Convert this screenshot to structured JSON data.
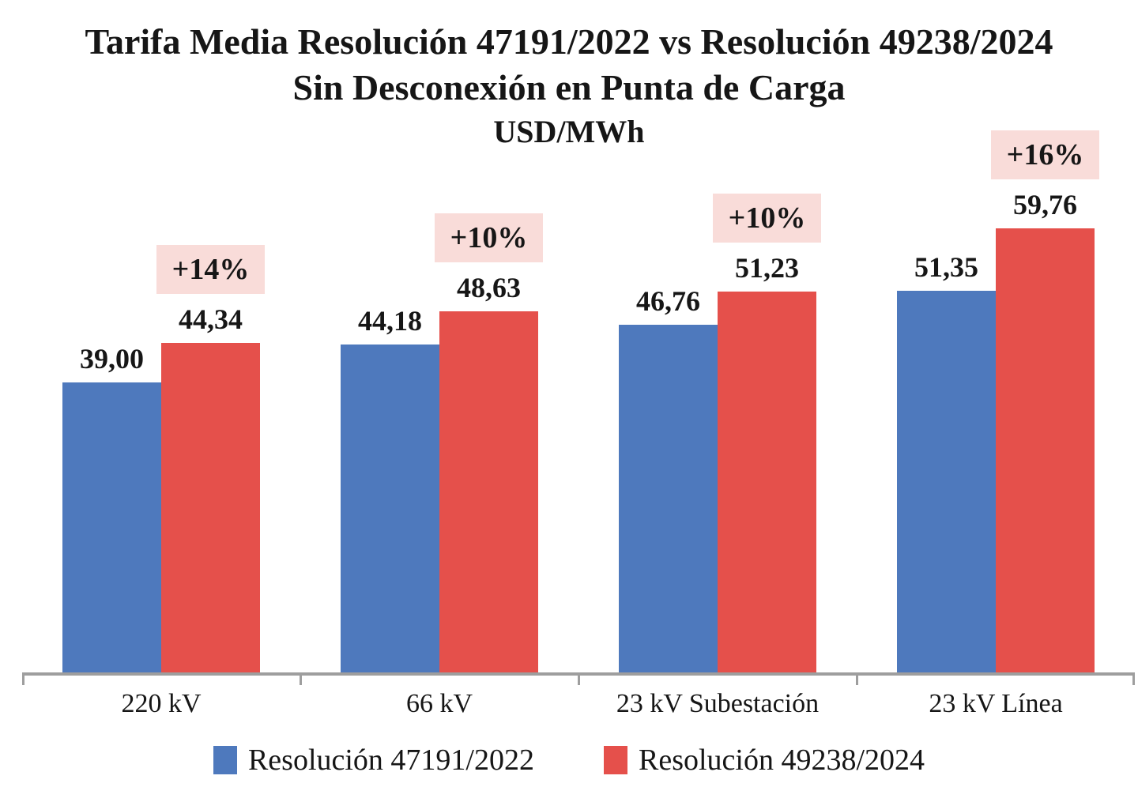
{
  "header": {
    "cropped_text_remnant": "Tarifa Media Resolución 47191/2022 vs Resolución 49238/2024",
    "title_line1": "Tarifa Media Resolución 47191/2022 vs Resolución 49238/2024",
    "title_line2": "Sin Desconexión en Punta de Carga",
    "subtitle": "USD/MWh"
  },
  "chart_data": {
    "type": "bar",
    "title": "Tarifa Media Resolución 47191/2022 vs Resolución 49238/2024",
    "subtitle": "Sin Desconexión en Punta de Carga",
    "unit": "USD/MWh",
    "categories": [
      "220 kV",
      "66 kV",
      "23 kV Subestación",
      "23 kV Línea"
    ],
    "series": [
      {
        "name": "Resolución 47191/2022",
        "color": "#4e79bd",
        "values": [
          39.0,
          44.18,
          46.76,
          51.35
        ],
        "value_labels": [
          "39,00",
          "44,18",
          "46,76",
          "51,35"
        ]
      },
      {
        "name": "Resolución 49238/2024",
        "color": "#e5504b",
        "values": [
          44.34,
          48.63,
          51.23,
          59.76
        ],
        "value_labels": [
          "44,34",
          "48,63",
          "51,23",
          "59,76"
        ]
      }
    ],
    "percent_badges": [
      "+14%",
      "+10%",
      "+10%",
      "+16%"
    ],
    "badge_background": "#f9dcd9",
    "axis_color": "#9e9e9e",
    "ylim": [
      0,
      74
    ],
    "grid": false,
    "legend_position": "bottom"
  }
}
